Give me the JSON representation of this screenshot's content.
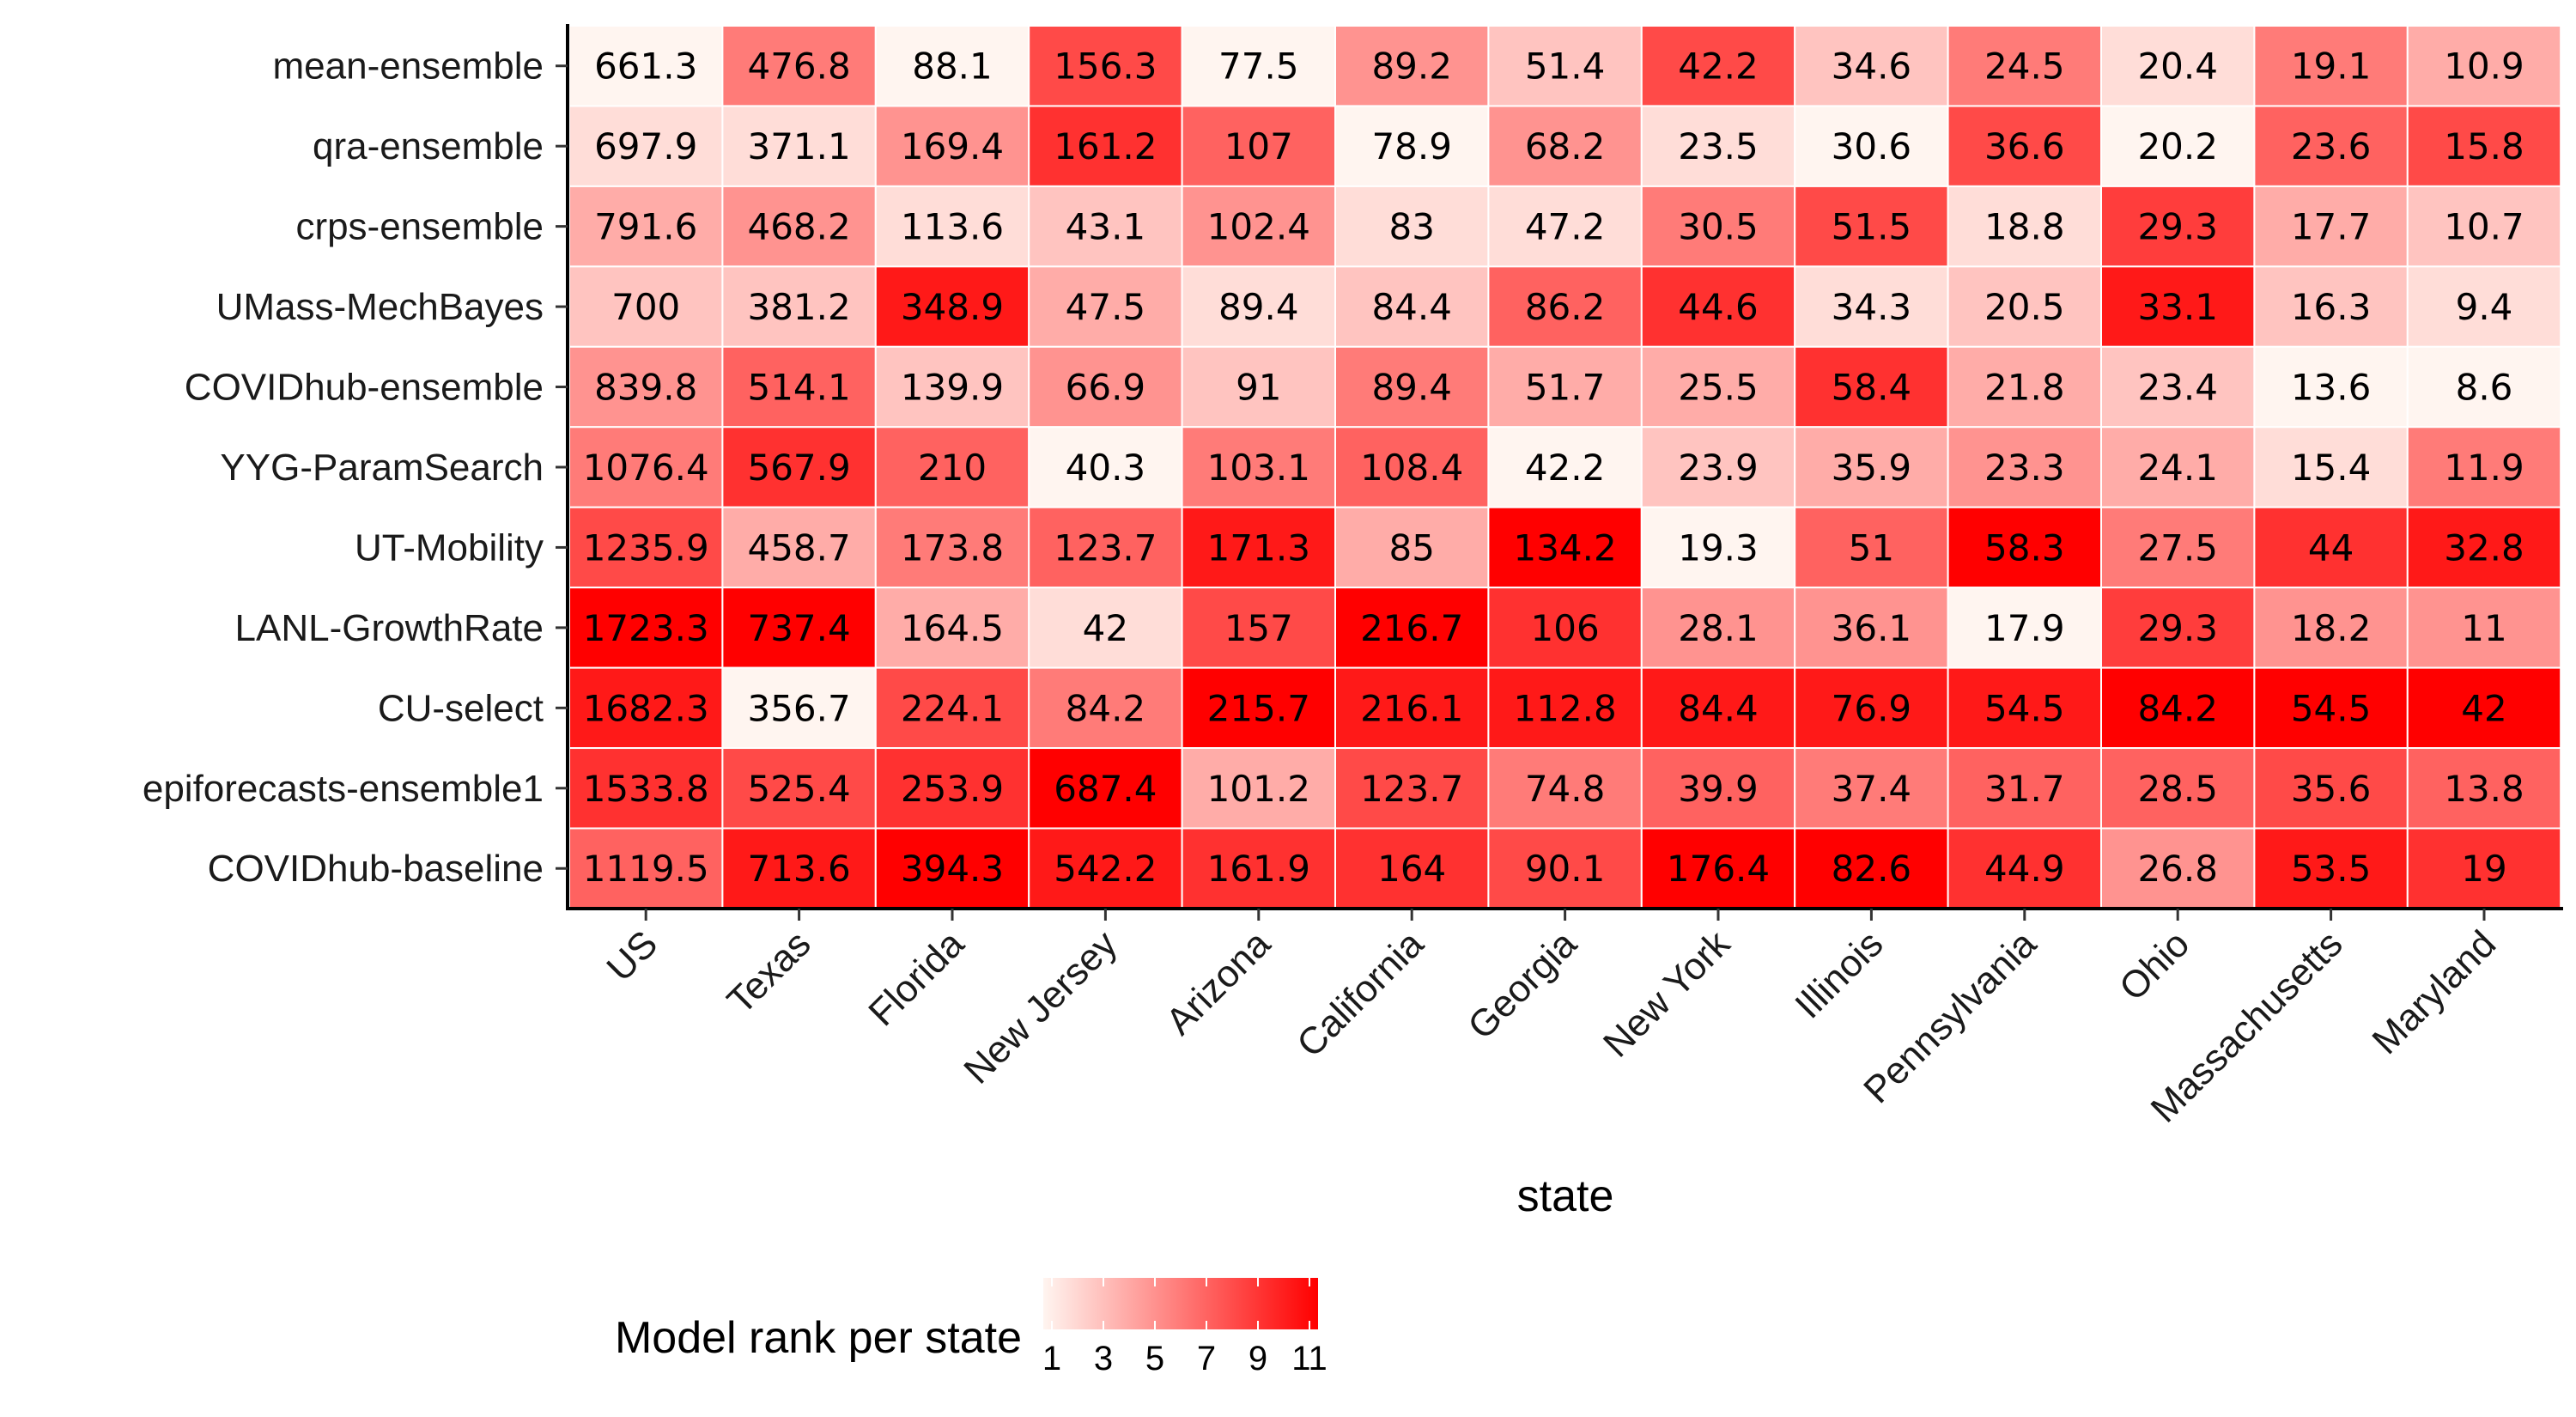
{
  "chart_data": {
    "type": "heatmap",
    "xlabel": "state",
    "ylabel": "",
    "x": [
      "US",
      "Texas",
      "Florida",
      "New Jersey",
      "Arizona",
      "California",
      "Georgia",
      "New York",
      "Illinois",
      "Pennsylvania",
      "Ohio",
      "Massachusetts",
      "Maryland"
    ],
    "y": [
      "mean-ensemble",
      "qra-ensemble",
      "crps-ensemble",
      "UMass-MechBayes",
      "COVIDhub-ensemble",
      "YYG-ParamSearch",
      "UT-Mobility",
      "LANL-GrowthRate",
      "CU-select",
      "epiforecasts-ensemble1",
      "COVIDhub-baseline"
    ],
    "values": [
      [
        "661.3",
        "476.8",
        "88.1",
        "156.3",
        "77.5",
        "89.2",
        "51.4",
        "42.2",
        "34.6",
        "24.5",
        "20.4",
        "19.1",
        "10.9"
      ],
      [
        "697.9",
        "371.1",
        "169.4",
        "161.2",
        "107",
        "78.9",
        "68.2",
        "23.5",
        "30.6",
        "36.6",
        "20.2",
        "23.6",
        "15.8"
      ],
      [
        "791.6",
        "468.2",
        "113.6",
        "43.1",
        "102.4",
        "83",
        "47.2",
        "30.5",
        "51.5",
        "18.8",
        "29.3",
        "17.7",
        "10.7"
      ],
      [
        "700",
        "381.2",
        "348.9",
        "47.5",
        "89.4",
        "84.4",
        "86.2",
        "44.6",
        "34.3",
        "20.5",
        "33.1",
        "16.3",
        "9.4"
      ],
      [
        "839.8",
        "514.1",
        "139.9",
        "66.9",
        "91",
        "89.4",
        "51.7",
        "25.5",
        "58.4",
        "21.8",
        "23.4",
        "13.6",
        "8.6"
      ],
      [
        "1076.4",
        "567.9",
        "210",
        "40.3",
        "103.1",
        "108.4",
        "42.2",
        "23.9",
        "35.9",
        "23.3",
        "24.1",
        "15.4",
        "11.9"
      ],
      [
        "1235.9",
        "458.7",
        "173.8",
        "123.7",
        "171.3",
        "85",
        "134.2",
        "19.3",
        "51",
        "58.3",
        "27.5",
        "44",
        "32.8"
      ],
      [
        "1723.3",
        "737.4",
        "164.5",
        "42",
        "157",
        "216.7",
        "106",
        "28.1",
        "36.1",
        "17.9",
        "29.3",
        "18.2",
        "11"
      ],
      [
        "1682.3",
        "356.7",
        "224.1",
        "84.2",
        "215.7",
        "216.1",
        "112.8",
        "84.4",
        "76.9",
        "54.5",
        "84.2",
        "54.5",
        "42"
      ],
      [
        "1533.8",
        "525.4",
        "253.9",
        "687.4",
        "101.2",
        "123.7",
        "74.8",
        "39.9",
        "37.4",
        "31.7",
        "28.5",
        "35.6",
        "13.8"
      ],
      [
        "1119.5",
        "713.6",
        "394.3",
        "542.2",
        "161.9",
        "164",
        "90.1",
        "176.4",
        "82.6",
        "44.9",
        "26.8",
        "53.5",
        "19"
      ]
    ],
    "color_encoding": "Model rank per state",
    "legend": {
      "title": "Model rank per state",
      "ticks": [
        "1",
        "3",
        "5",
        "7",
        "9",
        "11"
      ],
      "range": [
        1,
        11
      ],
      "low_color": "#fff5f0",
      "high_color": "#ff0000",
      "placement": "bottom"
    },
    "grid": false
  }
}
